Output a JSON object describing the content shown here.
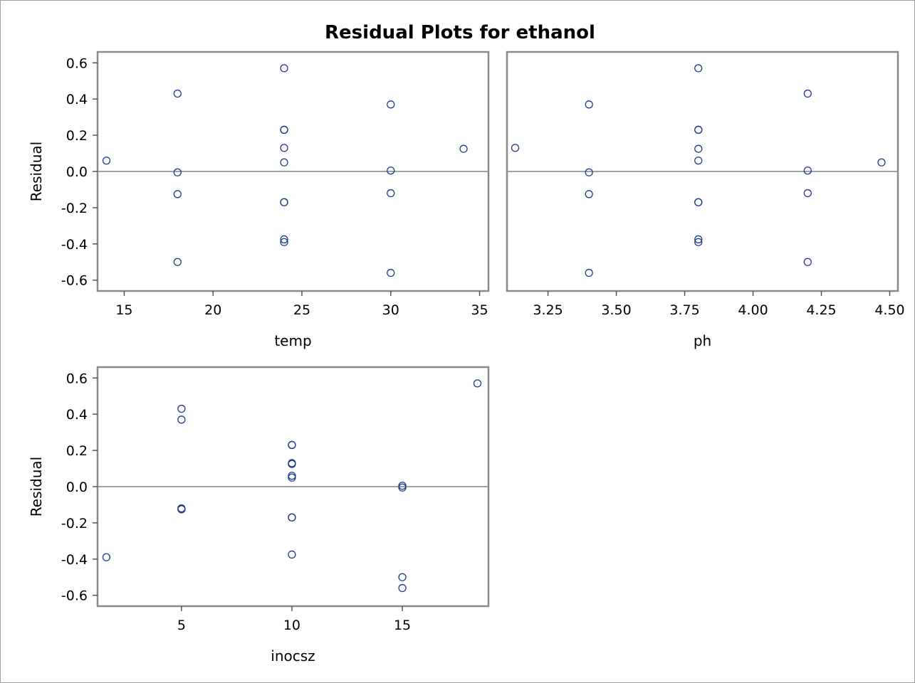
{
  "figure": {
    "title": "Residual Plots for ethanol"
  },
  "colors": {
    "marker": "#1f3c8c",
    "reference_line": "#9aa4a8",
    "frame": "#8a8a8a"
  },
  "chart_data": [
    {
      "type": "scatter",
      "xlabel": "temp",
      "ylabel": "Residual",
      "xlim": [
        13.5,
        35.5
      ],
      "ylim": [
        -0.66,
        0.66
      ],
      "xticks": [
        15,
        20,
        25,
        30,
        35
      ],
      "xtick_labels": [
        "15",
        "20",
        "25",
        "30",
        "35"
      ],
      "yticks": [
        0.6,
        0.4,
        0.2,
        0.0,
        -0.2,
        -0.4,
        -0.6
      ],
      "ytick_labels": [
        "0.6",
        "0.4",
        "0.2",
        "0.0",
        "-0.2",
        "-0.4",
        "-0.6"
      ],
      "show_ylabel": true,
      "reference_y": 0,
      "grid": false,
      "points": [
        {
          "x": 14,
          "y": 0.06
        },
        {
          "x": 18,
          "y": 0.43
        },
        {
          "x": 18,
          "y": -0.005
        },
        {
          "x": 18,
          "y": -0.125
        },
        {
          "x": 18,
          "y": -0.5
        },
        {
          "x": 24,
          "y": 0.57
        },
        {
          "x": 24,
          "y": 0.23
        },
        {
          "x": 24,
          "y": 0.23
        },
        {
          "x": 24,
          "y": 0.13
        },
        {
          "x": 24,
          "y": 0.05
        },
        {
          "x": 24,
          "y": -0.17
        },
        {
          "x": 24,
          "y": -0.17
        },
        {
          "x": 24,
          "y": -0.375
        },
        {
          "x": 24,
          "y": -0.39
        },
        {
          "x": 30,
          "y": 0.37
        },
        {
          "x": 30,
          "y": 0.005
        },
        {
          "x": 30,
          "y": -0.12
        },
        {
          "x": 30,
          "y": -0.56
        },
        {
          "x": 34.1,
          "y": 0.125
        }
      ]
    },
    {
      "type": "scatter",
      "xlabel": "ph",
      "ylabel": "",
      "xlim": [
        3.1,
        4.53
      ],
      "ylim": [
        -0.66,
        0.66
      ],
      "xticks": [
        3.25,
        3.5,
        3.75,
        4.0,
        4.25,
        4.5
      ],
      "xtick_labels": [
        "3.25",
        "3.50",
        "3.75",
        "4.00",
        "4.25",
        "4.50"
      ],
      "yticks": [],
      "ytick_labels": [],
      "show_ylabel": false,
      "reference_y": 0,
      "grid": false,
      "points": [
        {
          "x": 3.13,
          "y": 0.13
        },
        {
          "x": 3.4,
          "y": 0.37
        },
        {
          "x": 3.4,
          "y": -0.005
        },
        {
          "x": 3.4,
          "y": -0.125
        },
        {
          "x": 3.4,
          "y": -0.56
        },
        {
          "x": 3.8,
          "y": 0.57
        },
        {
          "x": 3.8,
          "y": 0.23
        },
        {
          "x": 3.8,
          "y": 0.23
        },
        {
          "x": 3.8,
          "y": 0.125
        },
        {
          "x": 3.8,
          "y": 0.06
        },
        {
          "x": 3.8,
          "y": -0.17
        },
        {
          "x": 3.8,
          "y": -0.17
        },
        {
          "x": 3.8,
          "y": -0.375
        },
        {
          "x": 3.8,
          "y": -0.39
        },
        {
          "x": 4.2,
          "y": 0.43
        },
        {
          "x": 4.2,
          "y": 0.005
        },
        {
          "x": 4.2,
          "y": -0.12
        },
        {
          "x": 4.2,
          "y": -0.5
        },
        {
          "x": 4.47,
          "y": 0.05
        }
      ]
    },
    {
      "type": "scatter",
      "xlabel": "inocsz",
      "ylabel": "Residual",
      "xlim": [
        1.2,
        18.9
      ],
      "ylim": [
        -0.66,
        0.66
      ],
      "xticks": [
        5,
        10,
        15
      ],
      "xtick_labels": [
        "5",
        "10",
        "15"
      ],
      "yticks": [
        0.6,
        0.4,
        0.2,
        0.0,
        -0.2,
        -0.4,
        -0.6
      ],
      "ytick_labels": [
        "0.6",
        "0.4",
        "0.2",
        "0.0",
        "-0.2",
        "-0.4",
        "-0.6"
      ],
      "show_ylabel": true,
      "reference_y": 0,
      "grid": false,
      "points": [
        {
          "x": 1.6,
          "y": -0.39
        },
        {
          "x": 5,
          "y": 0.43
        },
        {
          "x": 5,
          "y": 0.37
        },
        {
          "x": 5,
          "y": -0.12
        },
        {
          "x": 5,
          "y": -0.125
        },
        {
          "x": 10,
          "y": 0.23
        },
        {
          "x": 10,
          "y": 0.23
        },
        {
          "x": 10,
          "y": 0.13
        },
        {
          "x": 10,
          "y": 0.125
        },
        {
          "x": 10,
          "y": 0.06
        },
        {
          "x": 10,
          "y": 0.05
        },
        {
          "x": 10,
          "y": -0.17
        },
        {
          "x": 10,
          "y": -0.17
        },
        {
          "x": 10,
          "y": -0.375
        },
        {
          "x": 15,
          "y": 0.005
        },
        {
          "x": 15,
          "y": -0.005
        },
        {
          "x": 15,
          "y": -0.5
        },
        {
          "x": 15,
          "y": -0.56
        },
        {
          "x": 18.4,
          "y": 0.57
        }
      ]
    }
  ]
}
